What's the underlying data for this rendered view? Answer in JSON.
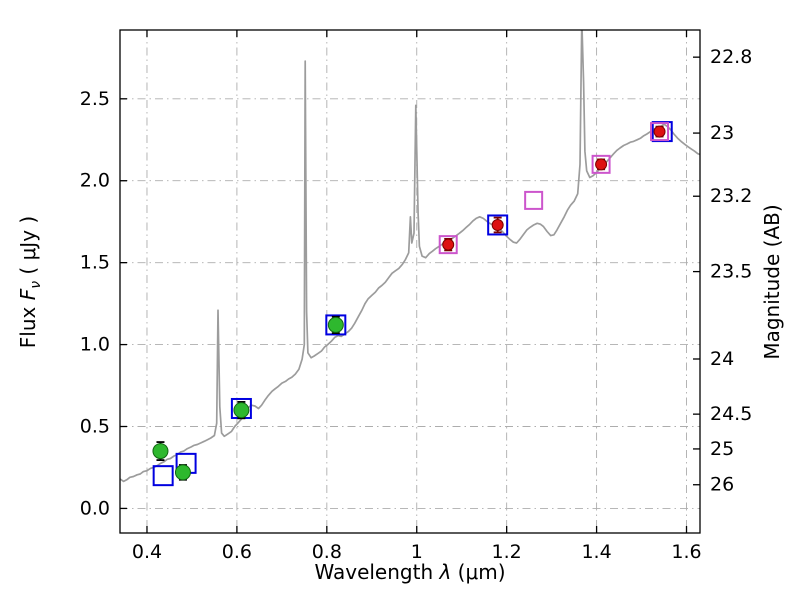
{
  "labels": {
    "wav_pre": "Wavelength  ",
    "wav_sym": "λ",
    "wav_post": " (μm)",
    "flux_pre": "Flux  ",
    "flux_sym": "F",
    "flux_sub": "ν",
    "flux_post": "  ( μJy )",
    "mag": "Magnitude (AB)"
  },
  "chart_data": {
    "type": "line",
    "title": "",
    "xlabel": "Wavelength λ (μm)",
    "ylabel_left": "Flux Fν ( μJy )",
    "ylabel_right": "Magnitude (AB)",
    "grid": true,
    "grid_style": "dash-dot",
    "legend": "none",
    "xlim": [
      0.34,
      1.63
    ],
    "ylim": [
      -0.15,
      2.92
    ],
    "x_ticks": [
      0.4,
      0.6,
      0.8,
      1.0,
      1.2,
      1.4,
      1.6
    ],
    "x_tick_labels": [
      "0.4",
      "0.6",
      "0.8",
      "1",
      "1.2",
      "1.4",
      "1.6"
    ],
    "y_ticks_left": [
      0.0,
      0.5,
      1.0,
      1.5,
      2.0,
      2.5
    ],
    "y_tick_labels_left": [
      "0.0",
      "0.5",
      "1.0",
      "1.5",
      "2.0",
      "2.5"
    ],
    "y_ticks_right_mag": [
      22.8,
      23,
      23.2,
      23.5,
      24,
      24.5,
      25,
      26
    ],
    "y_tick_labels_right": [
      "22.8",
      "23",
      "23.2",
      "23.5",
      "24",
      "24.5",
      "25",
      "26"
    ],
    "mag_zero_point": 23.9,
    "style": {
      "grid_color": "#adadad",
      "spine_color": "#000000",
      "background": "#ffffff"
    },
    "spectrum": {
      "name": "model-galaxy-spectrum",
      "color": "#9c9c9c",
      "points": [
        [
          0.34,
          0.18
        ],
        [
          0.348,
          0.165
        ],
        [
          0.355,
          0.175
        ],
        [
          0.362,
          0.19
        ],
        [
          0.37,
          0.195
        ],
        [
          0.378,
          0.205
        ],
        [
          0.385,
          0.21
        ],
        [
          0.392,
          0.225
        ],
        [
          0.4,
          0.23
        ],
        [
          0.408,
          0.245
        ],
        [
          0.415,
          0.25
        ],
        [
          0.422,
          0.26
        ],
        [
          0.43,
          0.275
        ],
        [
          0.438,
          0.285
        ],
        [
          0.445,
          0.3
        ],
        [
          0.452,
          0.305
        ],
        [
          0.46,
          0.32
        ],
        [
          0.468,
          0.33
        ],
        [
          0.475,
          0.345
        ],
        [
          0.482,
          0.35
        ],
        [
          0.49,
          0.365
        ],
        [
          0.498,
          0.375
        ],
        [
          0.505,
          0.385
        ],
        [
          0.512,
          0.39
        ],
        [
          0.52,
          0.4
        ],
        [
          0.528,
          0.41
        ],
        [
          0.535,
          0.42
        ],
        [
          0.542,
          0.43
        ],
        [
          0.55,
          0.445
        ],
        [
          0.555,
          0.52
        ],
        [
          0.558,
          1.21
        ],
        [
          0.562,
          0.62
        ],
        [
          0.566,
          0.46
        ],
        [
          0.572,
          0.44
        ],
        [
          0.58,
          0.455
        ],
        [
          0.588,
          0.47
        ],
        [
          0.595,
          0.5
        ],
        [
          0.602,
          0.52
        ],
        [
          0.61,
          0.545
        ],
        [
          0.618,
          0.58
        ],
        [
          0.625,
          0.615
        ],
        [
          0.632,
          0.63
        ],
        [
          0.64,
          0.625
        ],
        [
          0.648,
          0.61
        ],
        [
          0.655,
          0.63
        ],
        [
          0.662,
          0.66
        ],
        [
          0.67,
          0.69
        ],
        [
          0.678,
          0.715
        ],
        [
          0.685,
          0.73
        ],
        [
          0.692,
          0.745
        ],
        [
          0.7,
          0.765
        ],
        [
          0.708,
          0.775
        ],
        [
          0.715,
          0.79
        ],
        [
          0.722,
          0.8
        ],
        [
          0.73,
          0.82
        ],
        [
          0.738,
          0.85
        ],
        [
          0.745,
          0.91
        ],
        [
          0.75,
          1.0
        ],
        [
          0.752,
          2.73
        ],
        [
          0.755,
          1.2
        ],
        [
          0.758,
          0.95
        ],
        [
          0.765,
          0.92
        ],
        [
          0.772,
          0.93
        ],
        [
          0.78,
          0.945
        ],
        [
          0.788,
          0.96
        ],
        [
          0.795,
          0.985
        ],
        [
          0.802,
          1.0
        ],
        [
          0.81,
          1.02
        ],
        [
          0.818,
          1.045
        ],
        [
          0.825,
          1.055
        ],
        [
          0.832,
          1.05
        ],
        [
          0.84,
          1.065
        ],
        [
          0.848,
          1.08
        ],
        [
          0.855,
          1.1
        ],
        [
          0.862,
          1.13
        ],
        [
          0.87,
          1.17
        ],
        [
          0.878,
          1.21
        ],
        [
          0.885,
          1.25
        ],
        [
          0.892,
          1.28
        ],
        [
          0.9,
          1.3
        ],
        [
          0.908,
          1.32
        ],
        [
          0.915,
          1.345
        ],
        [
          0.922,
          1.36
        ],
        [
          0.93,
          1.38
        ],
        [
          0.938,
          1.41
        ],
        [
          0.945,
          1.435
        ],
        [
          0.952,
          1.45
        ],
        [
          0.96,
          1.465
        ],
        [
          0.968,
          1.49
        ],
        [
          0.975,
          1.52
        ],
        [
          0.982,
          1.56
        ],
        [
          0.986,
          1.78
        ],
        [
          0.989,
          1.62
        ],
        [
          0.994,
          1.68
        ],
        [
          0.998,
          2.46
        ],
        [
          1.003,
          1.8
        ],
        [
          1.006,
          1.6
        ],
        [
          1.012,
          1.54
        ],
        [
          1.02,
          1.53
        ],
        [
          1.028,
          1.555
        ],
        [
          1.035,
          1.57
        ],
        [
          1.042,
          1.585
        ],
        [
          1.05,
          1.6
        ],
        [
          1.058,
          1.615
        ],
        [
          1.065,
          1.625
        ],
        [
          1.072,
          1.635
        ],
        [
          1.08,
          1.65
        ],
        [
          1.088,
          1.665
        ],
        [
          1.095,
          1.68
        ],
        [
          1.102,
          1.695
        ],
        [
          1.11,
          1.715
        ],
        [
          1.118,
          1.735
        ],
        [
          1.125,
          1.755
        ],
        [
          1.132,
          1.77
        ],
        [
          1.14,
          1.78
        ],
        [
          1.148,
          1.77
        ],
        [
          1.155,
          1.755
        ],
        [
          1.162,
          1.74
        ],
        [
          1.17,
          1.73
        ],
        [
          1.178,
          1.72
        ],
        [
          1.185,
          1.705
        ],
        [
          1.192,
          1.685
        ],
        [
          1.2,
          1.66
        ],
        [
          1.208,
          1.64
        ],
        [
          1.215,
          1.625
        ],
        [
          1.222,
          1.62
        ],
        [
          1.23,
          1.645
        ],
        [
          1.238,
          1.675
        ],
        [
          1.245,
          1.7
        ],
        [
          1.252,
          1.715
        ],
        [
          1.26,
          1.73
        ],
        [
          1.268,
          1.74
        ],
        [
          1.275,
          1.735
        ],
        [
          1.282,
          1.72
        ],
        [
          1.29,
          1.69
        ],
        [
          1.298,
          1.665
        ],
        [
          1.305,
          1.67
        ],
        [
          1.312,
          1.7
        ],
        [
          1.32,
          1.74
        ],
        [
          1.328,
          1.78
        ],
        [
          1.335,
          1.82
        ],
        [
          1.342,
          1.85
        ],
        [
          1.35,
          1.875
        ],
        [
          1.358,
          1.92
        ],
        [
          1.363,
          2.1
        ],
        [
          1.367,
          2.98
        ],
        [
          1.371,
          2.6
        ],
        [
          1.374,
          2.18
        ],
        [
          1.378,
          2.06
        ],
        [
          1.385,
          2.02
        ],
        [
          1.392,
          2.03
        ],
        [
          1.4,
          2.05
        ],
        [
          1.408,
          2.075
        ],
        [
          1.415,
          2.09
        ],
        [
          1.422,
          2.115
        ],
        [
          1.43,
          2.14
        ],
        [
          1.438,
          2.165
        ],
        [
          1.445,
          2.185
        ],
        [
          1.452,
          2.2
        ],
        [
          1.46,
          2.215
        ],
        [
          1.468,
          2.225
        ],
        [
          1.475,
          2.235
        ],
        [
          1.482,
          2.24
        ],
        [
          1.49,
          2.25
        ],
        [
          1.498,
          2.26
        ],
        [
          1.505,
          2.275
        ],
        [
          1.512,
          2.285
        ],
        [
          1.52,
          2.3
        ],
        [
          1.528,
          2.315
        ],
        [
          1.535,
          2.325
        ],
        [
          1.542,
          2.33
        ],
        [
          1.55,
          2.345
        ],
        [
          1.558,
          2.33
        ],
        [
          1.565,
          2.31
        ],
        [
          1.572,
          2.285
        ],
        [
          1.58,
          2.26
        ],
        [
          1.588,
          2.24
        ],
        [
          1.595,
          2.225
        ],
        [
          1.602,
          2.21
        ],
        [
          1.61,
          2.195
        ],
        [
          1.618,
          2.18
        ],
        [
          1.625,
          2.165
        ],
        [
          1.63,
          2.16
        ]
      ]
    },
    "series": [
      {
        "name": "blue-square-photometry",
        "marker": "square",
        "size": 19,
        "color": "#0000e0",
        "points": [
          {
            "x": 0.436,
            "y": 0.2
          },
          {
            "x": 0.487,
            "y": 0.275
          },
          {
            "x": 0.61,
            "y": 0.61
          },
          {
            "x": 0.82,
            "y": 1.12
          },
          {
            "x": 1.18,
            "y": 1.73
          },
          {
            "x": 1.546,
            "y": 2.3
          }
        ]
      },
      {
        "name": "magenta-square-photometry",
        "marker": "square",
        "size": 17,
        "color": "#cc55cc",
        "points": [
          {
            "x": 1.07,
            "y": 1.61
          },
          {
            "x": 1.26,
            "y": 1.88
          },
          {
            "x": 1.41,
            "y": 2.1
          },
          {
            "x": 1.54,
            "y": 2.3
          }
        ]
      },
      {
        "name": "green-circle-photometry",
        "marker": "circle",
        "size": 7.5,
        "color": "#2eb82e",
        "edge": "#116611",
        "errcolor": "#000000",
        "points": [
          {
            "x": 0.43,
            "y": 0.35,
            "err": 0.055
          },
          {
            "x": 0.48,
            "y": 0.22,
            "err": 0.045
          },
          {
            "x": 0.61,
            "y": 0.6,
            "err": 0.05
          },
          {
            "x": 0.82,
            "y": 1.12,
            "err": 0.05
          }
        ]
      },
      {
        "name": "red-circle-photometry",
        "marker": "circle",
        "size": 5.5,
        "color": "#dd1111",
        "edge": "#7a0000",
        "errcolor": "#7a0000",
        "points": [
          {
            "x": 1.07,
            "y": 1.61,
            "err": 0.035
          },
          {
            "x": 1.18,
            "y": 1.73,
            "err": 0.045
          },
          {
            "x": 1.41,
            "y": 2.1,
            "err": 0.03
          },
          {
            "x": 1.54,
            "y": 2.3,
            "err": 0.03
          }
        ]
      }
    ]
  }
}
